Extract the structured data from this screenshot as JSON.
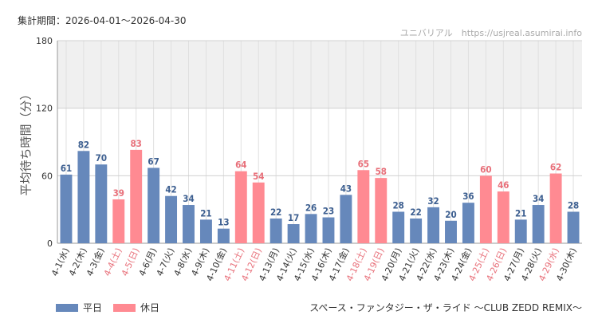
{
  "period": "集計期間：2026-04-01〜2026-04-30",
  "credit": "ユニバリアル　https://usjreal.asumirai.info",
  "attraction": "スペース・ファンタジー・ザ・ライド 〜CLUB ZEDD REMIX〜",
  "colors": {
    "weekday": "#6688bb",
    "holiday": "#ff8a92",
    "holiday_label": "#e8707a",
    "band": "#f0f0f0",
    "grid": "#e0e0e0"
  },
  "chart_data": {
    "type": "bar",
    "ylabel": "平均待ち時間（分）",
    "ylim": [
      0,
      180
    ],
    "yticks": [
      0,
      60,
      120,
      180
    ],
    "legend": [
      {
        "name": "平日",
        "key": "weekday"
      },
      {
        "name": "休日",
        "key": "holiday"
      }
    ],
    "categories": [
      "4-1(水)",
      "4-2(木)",
      "4-3(金)",
      "4-4(土)",
      "4-5(日)",
      "4-6(月)",
      "4-7(火)",
      "4-8(水)",
      "4-9(木)",
      "4-10(金)",
      "4-11(土)",
      "4-12(日)",
      "4-13(月)",
      "4-14(火)",
      "4-15(水)",
      "4-16(木)",
      "4-17(金)",
      "4-18(土)",
      "4-19(日)",
      "4-20(月)",
      "4-21(火)",
      "4-22(水)",
      "4-23(木)",
      "4-24(金)",
      "4-25(土)",
      "4-26(日)",
      "4-27(月)",
      "4-28(火)",
      "4-29(水)",
      "4-30(木)"
    ],
    "values": [
      61,
      82,
      70,
      39,
      83,
      67,
      42,
      34,
      21,
      13,
      64,
      54,
      22,
      17,
      26,
      23,
      43,
      65,
      58,
      28,
      22,
      32,
      20,
      36,
      60,
      46,
      21,
      34,
      62,
      28
    ],
    "holiday": [
      false,
      false,
      false,
      true,
      true,
      false,
      false,
      false,
      false,
      false,
      true,
      true,
      false,
      false,
      false,
      false,
      false,
      true,
      true,
      false,
      false,
      false,
      false,
      false,
      true,
      true,
      false,
      false,
      true,
      false
    ]
  }
}
